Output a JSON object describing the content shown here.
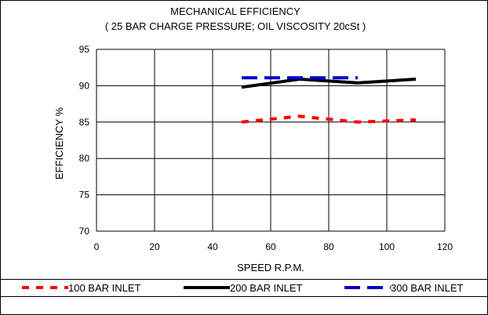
{
  "chart_data": {
    "type": "line",
    "title": "MECHANICAL EFFICIENCY",
    "subtitle": "( 25 BAR CHARGE PRESSURE; OIL VISCOSITY 20cSt )",
    "xlabel": "SPEED R.P.M.",
    "ylabel": "EFFICIENCY %",
    "xlim": [
      0,
      120
    ],
    "ylim": [
      70,
      95
    ],
    "xticks": [
      0,
      20,
      40,
      60,
      80,
      100,
      120
    ],
    "yticks": [
      70,
      75,
      80,
      85,
      90,
      95
    ],
    "grid": true,
    "legend_position": "bottom",
    "series": [
      {
        "name": "100 BAR INLET",
        "color": "#ff0000",
        "style": "dashed",
        "x": [
          50,
          70,
          90,
          110
        ],
        "y": [
          85.0,
          85.8,
          85.0,
          85.3
        ]
      },
      {
        "name": "200 BAR INLET",
        "color": "#000000",
        "style": "solid",
        "x": [
          50,
          70,
          90,
          110
        ],
        "y": [
          89.8,
          90.9,
          90.4,
          90.9
        ]
      },
      {
        "name": "300 BAR INLET",
        "color": "#0000cc",
        "style": "dashed",
        "x": [
          50,
          70,
          90
        ],
        "y": [
          91.1,
          91.1,
          91.1
        ]
      }
    ]
  }
}
